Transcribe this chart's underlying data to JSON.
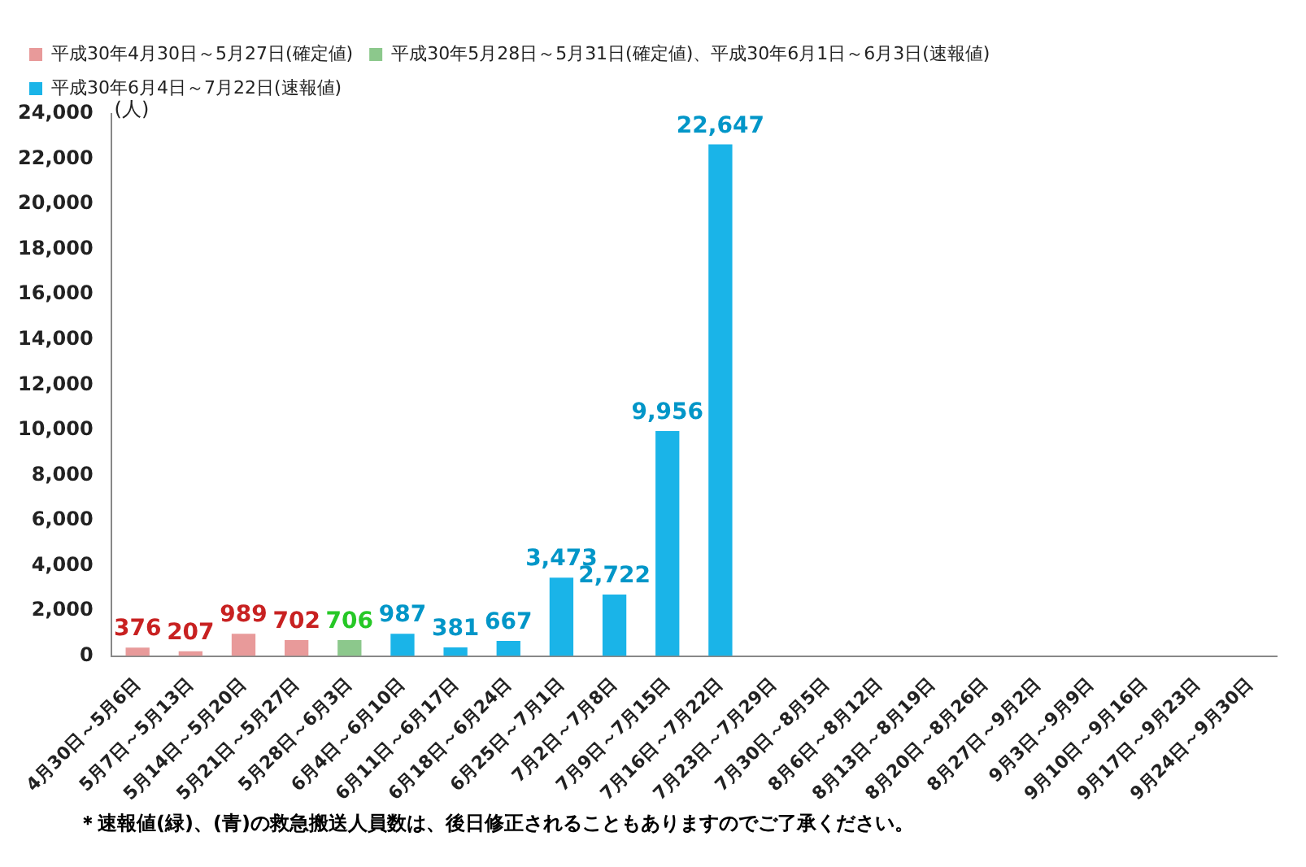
{
  "chart_data": {
    "type": "bar",
    "ylabel": "(人)",
    "categories": [
      "4月30日～5月6日",
      "5月7日～5月13日",
      "5月14日～5月20日",
      "5月21日～5月27日",
      "5月28日～6月3日",
      "6月4日～6月10日",
      "6月11日～6月17日",
      "6月18日～6月24日",
      "6月25日～7月1日",
      "7月2日～7月8日",
      "7月9日～7月15日",
      "7月16日～7月22日",
      "7月23日～7月29日",
      "7月30日～8月5日",
      "8月6日～8月12日",
      "8月13日～8月19日",
      "8月20日～8月26日",
      "8月27日～9月2日",
      "9月3日～9月9日",
      "9月10日～9月16日",
      "9月17日～9月23日",
      "9月24日～9月30日"
    ],
    "series": [
      {
        "name": "平成30年4月30日～5月27日(確定値)",
        "color": "#e89a9a",
        "values": [
          376,
          207,
          989,
          702,
          null,
          null,
          null,
          null,
          null,
          null,
          null,
          null,
          null,
          null,
          null,
          null,
          null,
          null,
          null,
          null,
          null,
          null
        ],
        "value_labels": [
          "376",
          "207",
          "989",
          "702",
          null,
          null,
          null,
          null,
          null,
          null,
          null,
          null,
          null,
          null,
          null,
          null,
          null,
          null,
          null,
          null,
          null,
          null
        ]
      },
      {
        "name": "平成30年5月28日～5月31日(確定値)、平成30年6月1日～6月3日(速報値)",
        "color": "#8cc88c",
        "values": [
          null,
          null,
          null,
          null,
          706,
          null,
          null,
          null,
          null,
          null,
          null,
          null,
          null,
          null,
          null,
          null,
          null,
          null,
          null,
          null,
          null,
          null
        ],
        "value_labels": [
          null,
          null,
          null,
          null,
          "706",
          null,
          null,
          null,
          null,
          null,
          null,
          null,
          null,
          null,
          null,
          null,
          null,
          null,
          null,
          null,
          null,
          null
        ]
      },
      {
        "name": "平成30年6月4日～7月22日(速報値)",
        "color": "#1ab4e8",
        "values": [
          null,
          null,
          null,
          null,
          null,
          987,
          381,
          667,
          3473,
          2722,
          9956,
          22647,
          null,
          null,
          null,
          null,
          null,
          null,
          null,
          null,
          null,
          null
        ],
        "value_labels": [
          null,
          null,
          null,
          null,
          null,
          "987",
          "381",
          "667",
          "3,473",
          "2,722",
          "9,956",
          "22,647",
          null,
          null,
          null,
          null,
          null,
          null,
          null,
          null,
          null,
          null
        ]
      }
    ],
    "ylim": [
      0,
      24000
    ],
    "yticks": [
      0,
      {
        "value": 2000,
        "label": "2,000"
      },
      {
        "value": 4000,
        "label": "4,000"
      },
      {
        "value": 6000,
        "label": "6,000"
      },
      {
        "value": 8000,
        "label": "8,000"
      },
      {
        "value": 10000,
        "label": "10,000"
      },
      {
        "value": 12000,
        "label": "12,000"
      },
      {
        "value": 14000,
        "label": "14,000"
      },
      {
        "value": 16000,
        "label": "16,000"
      },
      {
        "value": 18000,
        "label": "18,000"
      },
      {
        "value": 20000,
        "label": "20,000"
      },
      {
        "value": 22000,
        "label": "22,000"
      },
      {
        "value": 24000,
        "label": "24,000"
      }
    ],
    "grid": false,
    "legend": "top",
    "annotations": [
      "＊速報値(緑)、(青)の救急搬送人員数は、後日修正されることもありますのでご了承ください。"
    ]
  }
}
